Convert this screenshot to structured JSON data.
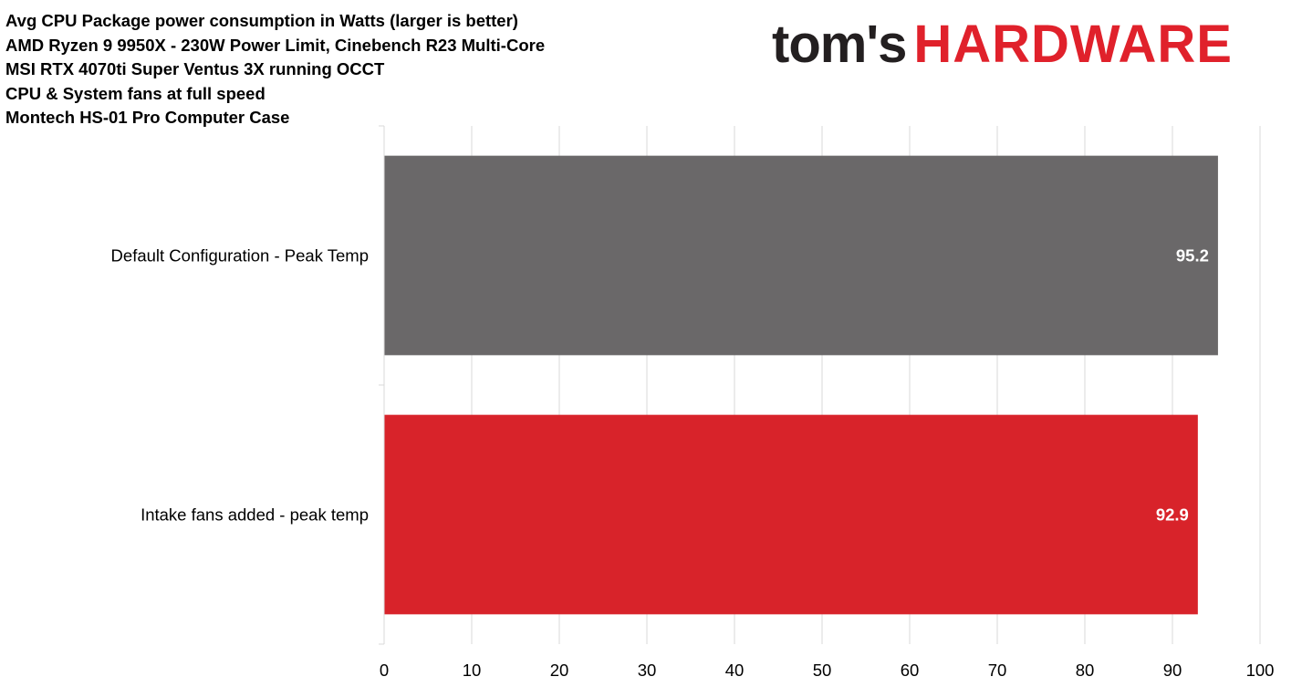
{
  "header": {
    "title_lines": [
      "Avg CPU Package power consumption in Watts (larger is better)",
      "AMD Ryzen 9 9950X - 230W Power Limit, Cinebench R23 Multi-Core",
      "MSI RTX 4070ti Super Ventus 3X running OCCT",
      "CPU & System fans at full speed",
      "Montech HS-01 Pro Computer Case"
    ]
  },
  "logo": {
    "part1": "tom's",
    "part2": "HARDWARE"
  },
  "chart_data": {
    "type": "bar",
    "orientation": "horizontal",
    "title": "Avg CPU Package power consumption in Watts (larger is better)",
    "categories": [
      "Default Configuration - Peak Temp",
      "Intake fans added - peak temp"
    ],
    "values": [
      95.2,
      92.9
    ],
    "colors": [
      "#6a6869",
      "#d8232a"
    ],
    "xlim": [
      0,
      100
    ],
    "xticks": [
      0,
      10,
      20,
      30,
      40,
      50,
      60,
      70,
      80,
      90,
      100
    ],
    "grid": true,
    "legend": "none"
  }
}
